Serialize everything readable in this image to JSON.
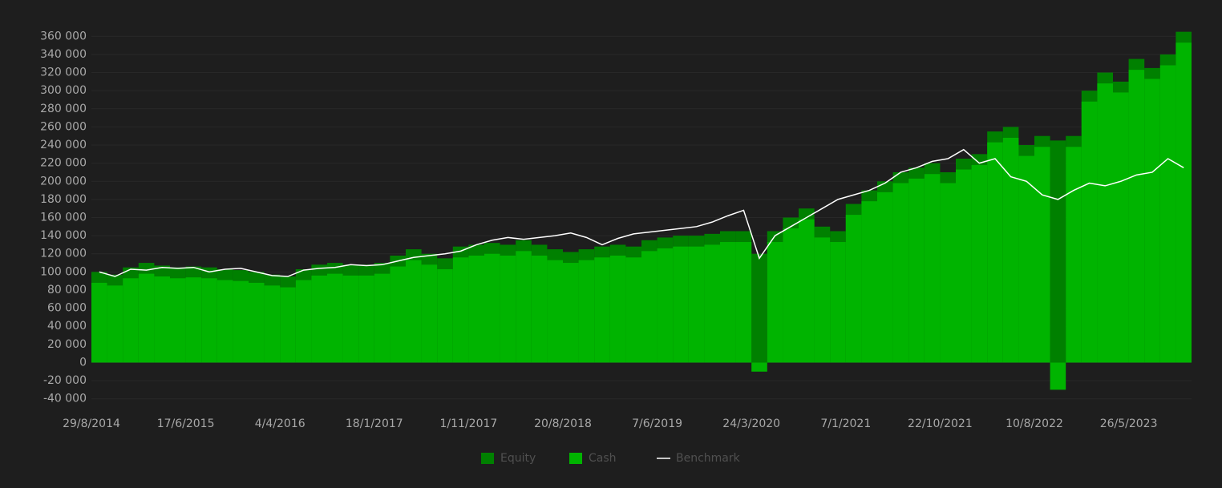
{
  "chart_data": {
    "type": "bar",
    "categories": [
      "29/8/2014",
      null,
      null,
      null,
      null,
      null,
      "17/6/2015",
      null,
      null,
      null,
      null,
      null,
      "4/4/2016",
      null,
      null,
      null,
      null,
      null,
      "18/1/2017",
      null,
      null,
      null,
      null,
      null,
      "1/11/2017",
      null,
      null,
      null,
      null,
      null,
      "20/8/2018",
      null,
      null,
      null,
      null,
      null,
      "7/6/2019",
      null,
      null,
      null,
      null,
      null,
      "24/3/2020",
      null,
      null,
      null,
      null,
      null,
      "7/1/2021",
      null,
      null,
      null,
      null,
      null,
      "22/10/2021",
      null,
      null,
      null,
      null,
      null,
      "10/8/2022",
      null,
      null,
      null,
      null,
      null,
      "26/5/2023",
      null,
      null,
      null
    ],
    "series": [
      {
        "name": "Equity",
        "type": "bar",
        "color": "#008000",
        "values": [
          100000,
          97000,
          105000,
          110000,
          107000,
          105000,
          106000,
          105000,
          103000,
          102000,
          100000,
          97000,
          95000,
          103000,
          108000,
          110000,
          108000,
          108000,
          110000,
          118000,
          125000,
          120000,
          115000,
          128000,
          130000,
          132000,
          130000,
          135000,
          130000,
          125000,
          122000,
          125000,
          128000,
          130000,
          128000,
          135000,
          138000,
          140000,
          140000,
          142000,
          145000,
          145000,
          120000,
          145000,
          160000,
          170000,
          150000,
          145000,
          175000,
          190000,
          200000,
          210000,
          215000,
          220000,
          210000,
          225000,
          230000,
          255000,
          260000,
          240000,
          250000,
          245000,
          250000,
          300000,
          320000,
          310000,
          335000,
          325000,
          340000,
          365000
        ]
      },
      {
        "name": "Cash",
        "type": "bar",
        "color": "#00b400",
        "values": [
          88000,
          85000,
          93000,
          98000,
          95000,
          93000,
          94000,
          93000,
          91000,
          90000,
          88000,
          85000,
          83000,
          91000,
          96000,
          98000,
          96000,
          96000,
          98000,
          106000,
          113000,
          108000,
          103000,
          116000,
          118000,
          120000,
          118000,
          123000,
          118000,
          113000,
          110000,
          113000,
          116000,
          118000,
          116000,
          123000,
          126000,
          128000,
          128000,
          130000,
          133000,
          133000,
          -10000,
          133000,
          148000,
          158000,
          138000,
          133000,
          163000,
          178000,
          188000,
          198000,
          203000,
          208000,
          198000,
          213000,
          218000,
          243000,
          248000,
          228000,
          238000,
          -30000,
          238000,
          288000,
          308000,
          298000,
          323000,
          313000,
          328000,
          353000
        ]
      },
      {
        "name": "Benchmark",
        "type": "line",
        "color": "#ffffff",
        "values": [
          100000,
          95000,
          103000,
          102000,
          105000,
          104000,
          105000,
          100000,
          103000,
          104000,
          100000,
          96000,
          95000,
          102000,
          104000,
          105000,
          108000,
          107000,
          108000,
          112000,
          116000,
          118000,
          120000,
          123000,
          130000,
          135000,
          138000,
          136000,
          138000,
          140000,
          143000,
          138000,
          130000,
          137000,
          142000,
          144000,
          146000,
          148000,
          150000,
          155000,
          162000,
          168000,
          115000,
          140000,
          150000,
          160000,
          170000,
          180000,
          185000,
          190000,
          198000,
          210000,
          215000,
          222000,
          225000,
          235000,
          220000,
          225000,
          205000,
          200000,
          185000,
          180000,
          190000,
          198000,
          195000,
          200000,
          207000,
          210000,
          225000,
          215000
        ]
      }
    ],
    "ylim": [
      -50000,
      370000
    ],
    "yticks": [
      {
        "value": -40000,
        "label": "-40 000"
      },
      {
        "value": -20000,
        "label": "-20 000"
      },
      0,
      {
        "value": 20000,
        "label": "20 000"
      },
      {
        "value": 40000,
        "label": "40 000"
      },
      {
        "value": 60000,
        "label": "60 000"
      },
      {
        "value": 80000,
        "label": "80 000"
      },
      {
        "value": 100000,
        "label": "100 000"
      },
      {
        "value": 120000,
        "label": "120 000"
      },
      {
        "value": 140000,
        "label": "140 000"
      },
      {
        "value": 160000,
        "label": "160 000"
      },
      {
        "value": 180000,
        "label": "180 000"
      },
      {
        "value": 200000,
        "label": "200 000"
      },
      {
        "value": 220000,
        "label": "220 000"
      },
      {
        "value": 240000,
        "label": "240 000"
      },
      {
        "value": 260000,
        "label": "260 000"
      },
      {
        "value": 280000,
        "label": "280 000"
      },
      {
        "value": 300000,
        "label": "300 000"
      },
      {
        "value": 320000,
        "label": "320 000"
      },
      {
        "value": 340000,
        "label": "340 000"
      },
      {
        "value": 360000,
        "label": "360 000"
      }
    ],
    "grid": true
  }
}
